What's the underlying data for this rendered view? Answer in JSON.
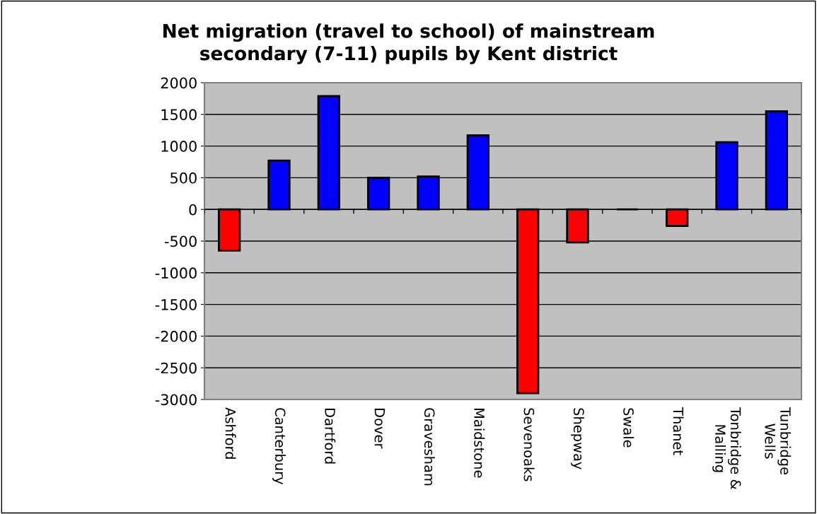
{
  "chart_data": {
    "type": "bar",
    "title": "Net migration (travel to school) of mainstream\nsecondary (7-11) pupils by Kent district",
    "categories": [
      "Ashford",
      "Canterbury",
      "Dartford",
      "Dover",
      "Gravesham",
      "Maidstone",
      "Sevenoaks",
      "Shepway",
      "Swale",
      "Thanet",
      "Tonbridge &\nMalling",
      "Tunbridge\nWells"
    ],
    "values": [
      -650,
      770,
      1790,
      500,
      520,
      1170,
      -2900,
      -520,
      0,
      -260,
      1060,
      1550
    ],
    "colors": [
      "#ff0000",
      "#0000ff",
      "#0000ff",
      "#0000ff",
      "#0000ff",
      "#0000ff",
      "#ff0000",
      "#ff0000",
      "#000000",
      "#ff0000",
      "#0000ff",
      "#0000ff"
    ],
    "ylim": [
      -3000,
      2000
    ],
    "yticks": [
      -3000,
      -2500,
      -2000,
      -1500,
      -1000,
      -500,
      0,
      500,
      1000,
      1500,
      2000
    ],
    "grid": "y",
    "legend": false
  }
}
